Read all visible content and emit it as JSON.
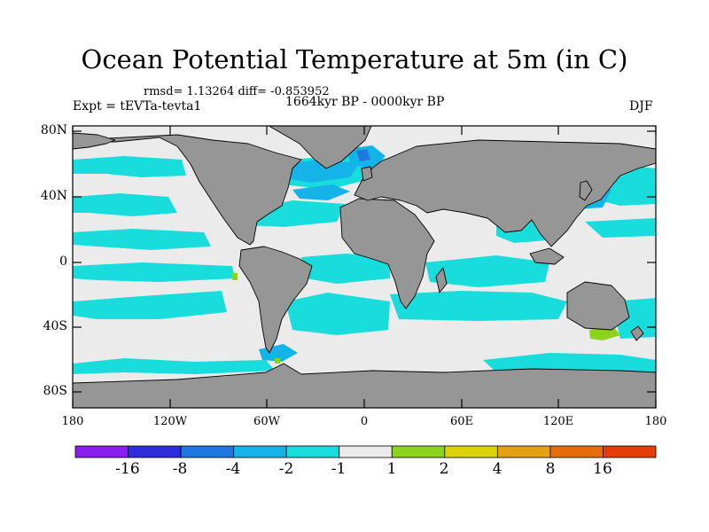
{
  "title": "Ocean Potential Temperature at 5m (in C)",
  "stats": "rmsd= 1.13264 diff= -0.853952",
  "experiment": "Expt = tEVTa-tevta1",
  "period": "1664kyr BP - 0000kyr BP",
  "season": "DJF",
  "lat_ticks": [
    "80N",
    "40N",
    "0",
    "40S",
    "80S"
  ],
  "lon_ticks": [
    "180",
    "120W",
    "60W",
    "0",
    "60E",
    "120E",
    "180"
  ],
  "colorbar": {
    "colors": [
      "#8a1ef0",
      "#2d2ddc",
      "#1f78e0",
      "#14b4e8",
      "#19dcdc",
      "#ebebeb",
      "#8cd21e",
      "#dcd20a",
      "#e6a014",
      "#e66e0a",
      "#e63c0a"
    ],
    "labels": [
      "-16",
      "-8",
      "-4",
      "-2",
      "-1",
      "1",
      "2",
      "4",
      "8",
      "16"
    ]
  },
  "colors": {
    "land": "#969696",
    "ocean_neutral": "#ebebeb",
    "cyan": "#19dcdc",
    "light_blue": "#14b4e8",
    "mid_blue": "#1f78e0",
    "green": "#8cd21e",
    "coast": "#000000"
  }
}
